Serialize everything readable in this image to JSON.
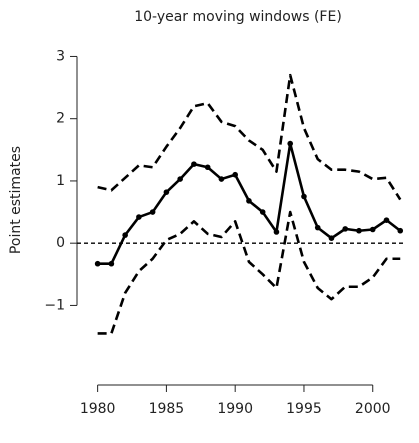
{
  "chart_data": {
    "type": "line",
    "title": "10-year moving windows (FE)",
    "y_label": "Point estimates",
    "x": [
      1980,
      1981,
      1982,
      1983,
      1984,
      1985,
      1986,
      1987,
      1988,
      1989,
      1990,
      1991,
      1992,
      1993,
      1994,
      1995,
      1996,
      1997,
      1998,
      1999,
      2000,
      2001,
      2002
    ],
    "series": [
      {
        "color": "#000000",
        "dashed": true,
        "markers": false,
        "values": [
          0.9,
          0.85,
          1.05,
          1.25,
          1.22,
          1.55,
          1.85,
          2.2,
          2.25,
          1.95,
          1.88,
          1.65,
          1.5,
          1.15,
          2.7,
          1.85,
          1.35,
          1.18,
          1.18,
          1.15,
          1.03,
          1.05,
          0.7
        ]
      },
      {
        "color": "#000000",
        "dashed": false,
        "markers": true,
        "values": [
          -0.33,
          -0.33,
          0.13,
          0.42,
          0.5,
          0.82,
          1.03,
          1.27,
          1.22,
          1.03,
          1.1,
          0.68,
          0.5,
          0.18,
          1.6,
          0.75,
          0.25,
          0.08,
          0.23,
          0.2,
          0.22,
          0.37,
          0.2
        ]
      },
      {
        "color": "#000000",
        "dashed": true,
        "markers": false,
        "values": [
          -1.45,
          -1.45,
          -0.8,
          -0.45,
          -0.25,
          0.05,
          0.15,
          0.35,
          0.15,
          0.1,
          0.35,
          -0.3,
          -0.5,
          -0.72,
          0.5,
          -0.3,
          -0.72,
          -0.9,
          -0.7,
          -0.7,
          -0.55,
          -0.25,
          -0.25
        ]
      }
    ],
    "reference_line": 0,
    "xlim": [
      1978.5,
      2002.2
    ],
    "xticks": [
      1980,
      1985,
      1990,
      1995,
      2000
    ],
    "ylim": [
      -1.7,
      3.2
    ],
    "yticks": [
      {
        "value": -1,
        "label": "−1"
      },
      0,
      1,
      2,
      3
    ]
  }
}
